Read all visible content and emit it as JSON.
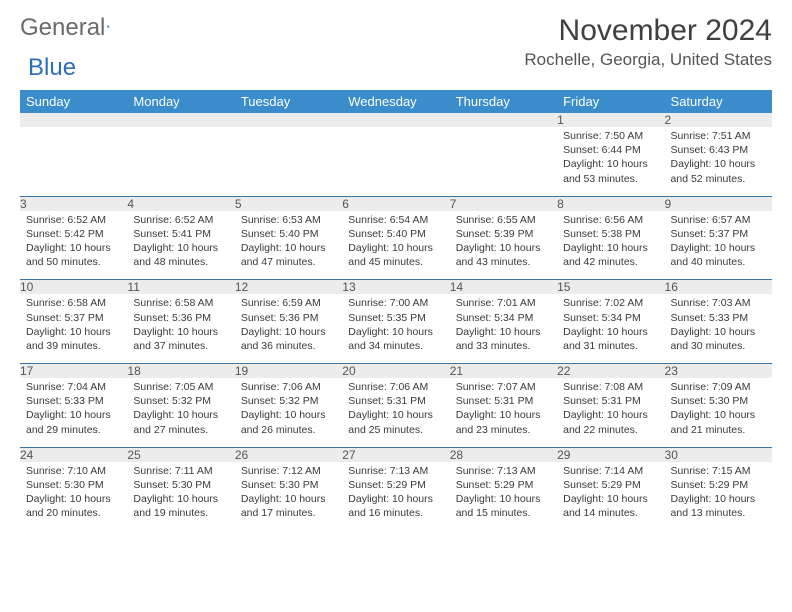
{
  "brand": {
    "part1": "General",
    "part2": "Blue"
  },
  "title": "November 2024",
  "location": "Rochelle, Georgia, United States",
  "header_bg": "#3b8ccb",
  "daynum_bg": "#ececec",
  "border_color": "#3b74a5",
  "day_names": [
    "Sunday",
    "Monday",
    "Tuesday",
    "Wednesday",
    "Thursday",
    "Friday",
    "Saturday"
  ],
  "weeks": [
    [
      null,
      null,
      null,
      null,
      null,
      {
        "n": "1",
        "sr": "7:50 AM",
        "ss": "6:44 PM",
        "dl": "10 hours and 53 minutes."
      },
      {
        "n": "2",
        "sr": "7:51 AM",
        "ss": "6:43 PM",
        "dl": "10 hours and 52 minutes."
      }
    ],
    [
      {
        "n": "3",
        "sr": "6:52 AM",
        "ss": "5:42 PM",
        "dl": "10 hours and 50 minutes."
      },
      {
        "n": "4",
        "sr": "6:52 AM",
        "ss": "5:41 PM",
        "dl": "10 hours and 48 minutes."
      },
      {
        "n": "5",
        "sr": "6:53 AM",
        "ss": "5:40 PM",
        "dl": "10 hours and 47 minutes."
      },
      {
        "n": "6",
        "sr": "6:54 AM",
        "ss": "5:40 PM",
        "dl": "10 hours and 45 minutes."
      },
      {
        "n": "7",
        "sr": "6:55 AM",
        "ss": "5:39 PM",
        "dl": "10 hours and 43 minutes."
      },
      {
        "n": "8",
        "sr": "6:56 AM",
        "ss": "5:38 PM",
        "dl": "10 hours and 42 minutes."
      },
      {
        "n": "9",
        "sr": "6:57 AM",
        "ss": "5:37 PM",
        "dl": "10 hours and 40 minutes."
      }
    ],
    [
      {
        "n": "10",
        "sr": "6:58 AM",
        "ss": "5:37 PM",
        "dl": "10 hours and 39 minutes."
      },
      {
        "n": "11",
        "sr": "6:58 AM",
        "ss": "5:36 PM",
        "dl": "10 hours and 37 minutes."
      },
      {
        "n": "12",
        "sr": "6:59 AM",
        "ss": "5:36 PM",
        "dl": "10 hours and 36 minutes."
      },
      {
        "n": "13",
        "sr": "7:00 AM",
        "ss": "5:35 PM",
        "dl": "10 hours and 34 minutes."
      },
      {
        "n": "14",
        "sr": "7:01 AM",
        "ss": "5:34 PM",
        "dl": "10 hours and 33 minutes."
      },
      {
        "n": "15",
        "sr": "7:02 AM",
        "ss": "5:34 PM",
        "dl": "10 hours and 31 minutes."
      },
      {
        "n": "16",
        "sr": "7:03 AM",
        "ss": "5:33 PM",
        "dl": "10 hours and 30 minutes."
      }
    ],
    [
      {
        "n": "17",
        "sr": "7:04 AM",
        "ss": "5:33 PM",
        "dl": "10 hours and 29 minutes."
      },
      {
        "n": "18",
        "sr": "7:05 AM",
        "ss": "5:32 PM",
        "dl": "10 hours and 27 minutes."
      },
      {
        "n": "19",
        "sr": "7:06 AM",
        "ss": "5:32 PM",
        "dl": "10 hours and 26 minutes."
      },
      {
        "n": "20",
        "sr": "7:06 AM",
        "ss": "5:31 PM",
        "dl": "10 hours and 25 minutes."
      },
      {
        "n": "21",
        "sr": "7:07 AM",
        "ss": "5:31 PM",
        "dl": "10 hours and 23 minutes."
      },
      {
        "n": "22",
        "sr": "7:08 AM",
        "ss": "5:31 PM",
        "dl": "10 hours and 22 minutes."
      },
      {
        "n": "23",
        "sr": "7:09 AM",
        "ss": "5:30 PM",
        "dl": "10 hours and 21 minutes."
      }
    ],
    [
      {
        "n": "24",
        "sr": "7:10 AM",
        "ss": "5:30 PM",
        "dl": "10 hours and 20 minutes."
      },
      {
        "n": "25",
        "sr": "7:11 AM",
        "ss": "5:30 PM",
        "dl": "10 hours and 19 minutes."
      },
      {
        "n": "26",
        "sr": "7:12 AM",
        "ss": "5:30 PM",
        "dl": "10 hours and 17 minutes."
      },
      {
        "n": "27",
        "sr": "7:13 AM",
        "ss": "5:29 PM",
        "dl": "10 hours and 16 minutes."
      },
      {
        "n": "28",
        "sr": "7:13 AM",
        "ss": "5:29 PM",
        "dl": "10 hours and 15 minutes."
      },
      {
        "n": "29",
        "sr": "7:14 AM",
        "ss": "5:29 PM",
        "dl": "10 hours and 14 minutes."
      },
      {
        "n": "30",
        "sr": "7:15 AM",
        "ss": "5:29 PM",
        "dl": "10 hours and 13 minutes."
      }
    ]
  ]
}
